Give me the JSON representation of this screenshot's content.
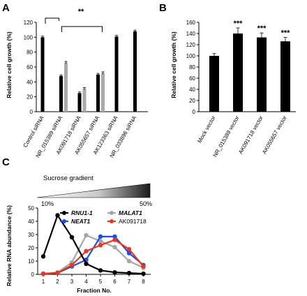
{
  "panels": {
    "a": "A",
    "b": "B",
    "c": "C"
  },
  "chart_data": [
    {
      "panel": "A",
      "type": "bar",
      "ylabel": "Relative cell growth (%)",
      "ylim": [
        0,
        120
      ],
      "yticks": [
        0,
        20,
        40,
        60,
        80,
        100,
        120
      ],
      "categories": [
        "Control siRNA",
        "NR_015389 siRNA",
        "AK091718 siRNA",
        "AK055657 siRNA",
        "AK123363 siRNA",
        "NR_033896 siRNA"
      ],
      "series": [
        {
          "color": "#000000",
          "values": [
            100,
            48,
            25,
            50,
            101,
            108
          ],
          "errors": [
            1.5,
            1.5,
            1.5,
            1.5,
            1.5,
            1.5
          ]
        },
        {
          "color": "#aaaaaa",
          "values": [
            null,
            66,
            31,
            52,
            null,
            null
          ],
          "errors": [
            null,
            1.5,
            1.5,
            1.5,
            null,
            null
          ]
        }
      ],
      "annotation": "**"
    },
    {
      "panel": "B",
      "type": "bar",
      "ylabel": "Relative cell growth (%)",
      "ylim": [
        0,
        160
      ],
      "yticks": [
        0,
        20,
        40,
        60,
        80,
        100,
        120,
        140,
        160
      ],
      "categories": [
        "Mock vector",
        "NR_015389 vector",
        "AK091718 vector",
        "AK055657 vector"
      ],
      "values": [
        100,
        140,
        133,
        126
      ],
      "errors": [
        4,
        10,
        8,
        7
      ],
      "significance": [
        "",
        "***",
        "***",
        "***"
      ],
      "color": "#000000"
    },
    {
      "panel": "C",
      "type": "line",
      "xlabel": "Fraction No.",
      "ylabel": "Relative RNA abundance (%)",
      "ylim": [
        0,
        50
      ],
      "yticks": [
        0,
        10,
        20,
        30,
        40,
        50
      ],
      "x": [
        1,
        2,
        3,
        4,
        5,
        6,
        7,
        8
      ],
      "gradient_title": "Sucrose gradient",
      "gradient_start": "10%",
      "gradient_end": "50%",
      "legend_placement": "top",
      "series": [
        {
          "name": "RNU1-1",
          "italic": true,
          "color": "#000000",
          "values": [
            13.5,
            44.5,
            28,
            8,
            3,
            1.5,
            1,
            0.5
          ]
        },
        {
          "name": "MALAT1",
          "italic": true,
          "color": "#a6a6a6",
          "values": [
            0.5,
            1.5,
            9,
            29.5,
            25,
            20.5,
            10,
            5
          ]
        },
        {
          "name": "NEAT1",
          "italic": true,
          "color": "#1c4fe0",
          "values": [
            0.5,
            1,
            6,
            11,
            28.5,
            28.5,
            16,
            7
          ]
        },
        {
          "name": "AK091718",
          "italic": false,
          "color": "#e8371d",
          "values": [
            0.5,
            1,
            7,
            17.5,
            22,
            26,
            19,
            6
          ]
        }
      ]
    }
  ]
}
